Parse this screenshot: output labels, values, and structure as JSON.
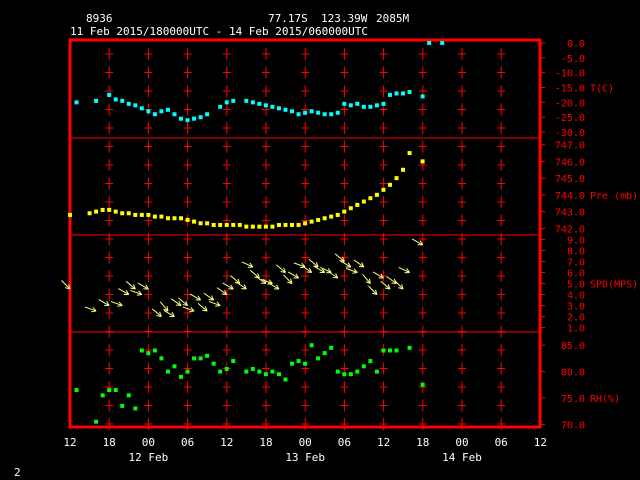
{
  "header": {
    "station": "8936",
    "lat": "77.17S",
    "lon": "123.39W",
    "elev": "2085M",
    "time_range": "11 Feb 2015/180000UTC - 14 Feb 2015/060000UTC"
  },
  "footer": {
    "page_number": "2"
  },
  "colors": {
    "frame": "#ff0000",
    "tick": "#ff0000",
    "temp": "#00ffff",
    "pressure": "#ffff00",
    "wind": "#ffff80",
    "rh": "#00ff00",
    "labels": "#ffffff"
  },
  "chart_data": [
    {
      "type": "scatter",
      "label": "T(C)",
      "ticks": [
        "0.0",
        "-5.0",
        "-10.0",
        "-15.0",
        "-20.0",
        "-25.0",
        "-30.0"
      ],
      "ylim": [
        -32,
        1
      ],
      "x": [
        -5,
        -2,
        0,
        1,
        2,
        3,
        4,
        5,
        6,
        7,
        8,
        9,
        10,
        11,
        12,
        13,
        14,
        15,
        17,
        18,
        19,
        21,
        22,
        23,
        24,
        25,
        26,
        27,
        28,
        29,
        30,
        31,
        32,
        33,
        34,
        35,
        36,
        37,
        38,
        39,
        40,
        41,
        42,
        43,
        44,
        45,
        46,
        48,
        49,
        51
      ],
      "values": [
        -20,
        -19.5,
        -17.5,
        -19,
        -19.5,
        -20.5,
        -21,
        -22,
        -23,
        -24,
        -23,
        -22.5,
        -24,
        -25.5,
        -26,
        -25.5,
        -25,
        -24,
        -21.5,
        -20,
        -19.5,
        -19.5,
        -20,
        -20.5,
        -21,
        -21.5,
        -22,
        -22.5,
        -23,
        -24,
        -23.5,
        -23,
        -23.5,
        -24,
        -24,
        -23.5,
        -20.5,
        -21,
        -20.5,
        -21.5,
        -21.5,
        -21,
        -20.5,
        -17.5,
        -17,
        -17,
        -16.5,
        -18,
        0,
        0
      ]
    },
    {
      "type": "scatter",
      "label": "Pre (mb)",
      "ticks": [
        "747.0",
        "746.0",
        "745.0",
        "744.0",
        "743.0",
        "742.0"
      ],
      "ylim": [
        741.6,
        747.4
      ],
      "x": [
        -6,
        -3,
        -2,
        -1,
        0,
        1,
        2,
        3,
        4,
        5,
        6,
        7,
        8,
        9,
        10,
        11,
        12,
        13,
        14,
        15,
        16,
        17,
        18,
        19,
        20,
        21,
        22,
        23,
        24,
        25,
        26,
        27,
        28,
        29,
        30,
        31,
        32,
        33,
        34,
        35,
        36,
        37,
        38,
        39,
        40,
        41,
        42,
        43,
        44,
        45,
        46,
        48
      ],
      "values": [
        742.8,
        742.9,
        743.0,
        743.1,
        743.1,
        743.0,
        742.9,
        742.9,
        742.8,
        742.8,
        742.8,
        742.7,
        742.7,
        742.6,
        742.6,
        742.6,
        742.5,
        742.4,
        742.3,
        742.3,
        742.2,
        742.2,
        742.2,
        742.2,
        742.2,
        742.1,
        742.1,
        742.1,
        742.1,
        742.1,
        742.2,
        742.2,
        742.2,
        742.2,
        742.3,
        742.4,
        742.5,
        742.6,
        742.7,
        742.8,
        743.0,
        743.2,
        743.4,
        743.6,
        743.8,
        744.0,
        744.3,
        744.6,
        745.0,
        745.5,
        746.5,
        746.0
      ]
    },
    {
      "type": "scatter",
      "label": "SPD(MPS)",
      "ticks": [
        "9.0",
        "8.0",
        "7.0",
        "6.0",
        "5.0",
        "4.0",
        "3.0",
        "2.0",
        "1.0"
      ],
      "ylim": [
        0.6,
        9.4
      ],
      "x": [
        -6,
        -2,
        0,
        2,
        3,
        4,
        5,
        6,
        8,
        9,
        10,
        11,
        12,
        13,
        14,
        15,
        16,
        17,
        18,
        19,
        20,
        21,
        22,
        23,
        24,
        25,
        26,
        27,
        28,
        29,
        30,
        31,
        32,
        33,
        34,
        35,
        36,
        37,
        38,
        39,
        40,
        41,
        42,
        43,
        44,
        45,
        46,
        48
      ],
      "dir_angle": [
        225,
        200,
        210,
        200,
        210,
        220,
        200,
        210,
        220,
        230,
        210,
        215,
        220,
        200,
        210,
        220,
        215,
        200,
        215,
        210,
        220,
        215,
        205,
        220,
        215,
        200,
        210,
        220,
        225,
        210,
        200,
        215,
        220,
        210,
        205,
        215,
        220,
        210,
        200,
        215,
        230,
        225,
        210,
        220,
        215,
        225,
        205,
        210
      ],
      "values": [
        4.5,
        2.5,
        3.0,
        3.0,
        4.0,
        4.5,
        4.0,
        4.5,
        2.0,
        2.5,
        2.0,
        3.0,
        3.0,
        2.5,
        3.5,
        2.5,
        3.5,
        3.0,
        4.0,
        4.5,
        5.0,
        4.5,
        6.5,
        5.5,
        5.0,
        5.0,
        4.5,
        6.0,
        5.0,
        5.5,
        6.5,
        6.0,
        6.5,
        6.0,
        6.0,
        5.5,
        7.0,
        6.5,
        6.0,
        6.5,
        5.0,
        4.0,
        5.5,
        4.5,
        5.0,
        4.5,
        6.0,
        8.5
      ]
    },
    {
      "type": "scatter",
      "label": "RH(%)",
      "ticks": [
        "85.0",
        "80.0",
        "75.0",
        "70.0"
      ],
      "ylim": [
        69.5,
        87.5
      ],
      "x": [
        -5,
        -2,
        -1,
        0,
        1,
        2,
        3,
        4,
        5,
        6,
        7,
        8,
        9,
        10,
        11,
        12,
        13,
        14,
        15,
        16,
        17,
        18,
        19,
        21,
        22,
        23,
        24,
        25,
        26,
        27,
        28,
        29,
        30,
        31,
        32,
        33,
        34,
        35,
        36,
        37,
        38,
        39,
        40,
        41,
        42,
        43,
        44,
        46,
        48
      ],
      "values": [
        76.5,
        70.5,
        75.5,
        76.5,
        76.5,
        73.5,
        75.5,
        73.0,
        84.0,
        83.5,
        84.0,
        82.5,
        80.0,
        81.0,
        79.0,
        80.0,
        82.5,
        82.5,
        83.0,
        81.5,
        80.0,
        80.5,
        82.0,
        80.0,
        80.5,
        80.0,
        79.5,
        80.0,
        79.5,
        78.5,
        81.5,
        82.0,
        81.5,
        85.0,
        82.5,
        83.5,
        84.5,
        80.0,
        79.5,
        79.5,
        80.0,
        81.0,
        82.0,
        80.0,
        84.0,
        84.0,
        84.0,
        84.5,
        77.5
      ]
    }
  ],
  "x_axis": {
    "ticks": [
      "12",
      "18",
      "00",
      "06",
      "12",
      "18",
      "00",
      "06",
      "12",
      "18",
      "00",
      "06",
      "12"
    ],
    "day_labels": [
      "12 Feb",
      "13 Feb",
      "14 Feb"
    ]
  }
}
